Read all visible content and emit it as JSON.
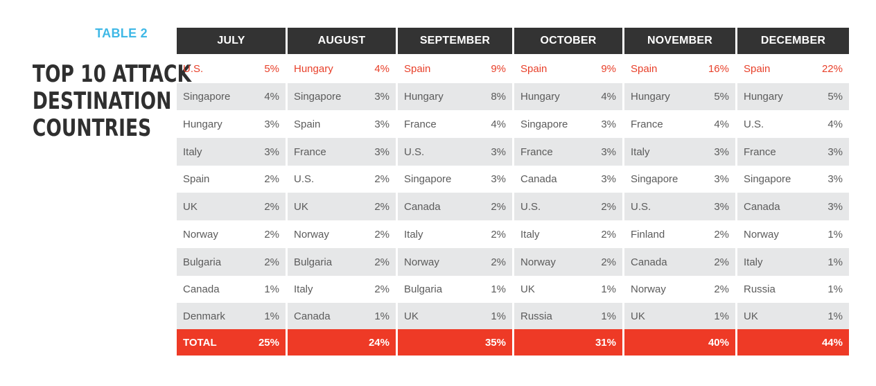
{
  "table_label": "TABLE 2",
  "title_lines": [
    "TOP 10 ATTACK",
    "DESTINATION",
    "COUNTRIES"
  ],
  "total_label": "TOTAL",
  "months": [
    {
      "name": "JULY",
      "rows": [
        {
          "country": "U.S.",
          "pct": "5%"
        },
        {
          "country": "Singapore",
          "pct": "4%"
        },
        {
          "country": "Hungary",
          "pct": "3%"
        },
        {
          "country": "Italy",
          "pct": "3%"
        },
        {
          "country": "Spain",
          "pct": "2%"
        },
        {
          "country": "UK",
          "pct": "2%"
        },
        {
          "country": "Norway",
          "pct": "2%"
        },
        {
          "country": "Bulgaria",
          "pct": "2%"
        },
        {
          "country": "Canada",
          "pct": "1%"
        },
        {
          "country": "Denmark",
          "pct": "1%"
        }
      ],
      "total": "25%"
    },
    {
      "name": "AUGUST",
      "rows": [
        {
          "country": "Hungary",
          "pct": "4%"
        },
        {
          "country": "Singapore",
          "pct": "3%"
        },
        {
          "country": "Spain",
          "pct": "3%"
        },
        {
          "country": "France",
          "pct": "3%"
        },
        {
          "country": "U.S.",
          "pct": "2%"
        },
        {
          "country": "UK",
          "pct": "2%"
        },
        {
          "country": "Norway",
          "pct": "2%"
        },
        {
          "country": "Bulgaria",
          "pct": "2%"
        },
        {
          "country": "Italy",
          "pct": "2%"
        },
        {
          "country": "Canada",
          "pct": "1%"
        }
      ],
      "total": "24%"
    },
    {
      "name": "SEPTEMBER",
      "rows": [
        {
          "country": "Spain",
          "pct": "9%"
        },
        {
          "country": "Hungary",
          "pct": "8%"
        },
        {
          "country": "France",
          "pct": "4%"
        },
        {
          "country": "U.S.",
          "pct": "3%"
        },
        {
          "country": "Singapore",
          "pct": "3%"
        },
        {
          "country": "Canada",
          "pct": "2%"
        },
        {
          "country": "Italy",
          "pct": "2%"
        },
        {
          "country": "Norway",
          "pct": "2%"
        },
        {
          "country": "Bulgaria",
          "pct": "1%"
        },
        {
          "country": "UK",
          "pct": "1%"
        }
      ],
      "total": "35%"
    },
    {
      "name": "OCTOBER",
      "rows": [
        {
          "country": "Spain",
          "pct": "9%"
        },
        {
          "country": "Hungary",
          "pct": "4%"
        },
        {
          "country": "Singapore",
          "pct": "3%"
        },
        {
          "country": "France",
          "pct": "3%"
        },
        {
          "country": "Canada",
          "pct": "3%"
        },
        {
          "country": "U.S.",
          "pct": "2%"
        },
        {
          "country": "Italy",
          "pct": "2%"
        },
        {
          "country": "Norway",
          "pct": "2%"
        },
        {
          "country": "UK",
          "pct": "1%"
        },
        {
          "country": "Russia",
          "pct": "1%"
        }
      ],
      "total": "31%"
    },
    {
      "name": "NOVEMBER",
      "rows": [
        {
          "country": "Spain",
          "pct": "16%"
        },
        {
          "country": "Hungary",
          "pct": "5%"
        },
        {
          "country": "France",
          "pct": "4%"
        },
        {
          "country": "Italy",
          "pct": "3%"
        },
        {
          "country": "Singapore",
          "pct": "3%"
        },
        {
          "country": "U.S.",
          "pct": "3%"
        },
        {
          "country": "Finland",
          "pct": "2%"
        },
        {
          "country": "Canada",
          "pct": "2%"
        },
        {
          "country": "Norway",
          "pct": "2%"
        },
        {
          "country": "UK",
          "pct": "1%"
        }
      ],
      "total": "40%"
    },
    {
      "name": "DECEMBER",
      "rows": [
        {
          "country": "Spain",
          "pct": "22%"
        },
        {
          "country": "Hungary",
          "pct": "5%"
        },
        {
          "country": "U.S.",
          "pct": "4%"
        },
        {
          "country": "France",
          "pct": "3%"
        },
        {
          "country": "Singapore",
          "pct": "3%"
        },
        {
          "country": "Canada",
          "pct": "3%"
        },
        {
          "country": "Norway",
          "pct": "1%"
        },
        {
          "country": "Italy",
          "pct": "1%"
        },
        {
          "country": "Russia",
          "pct": "1%"
        },
        {
          "country": "UK",
          "pct": "1%"
        }
      ],
      "total": "44%"
    }
  ]
}
